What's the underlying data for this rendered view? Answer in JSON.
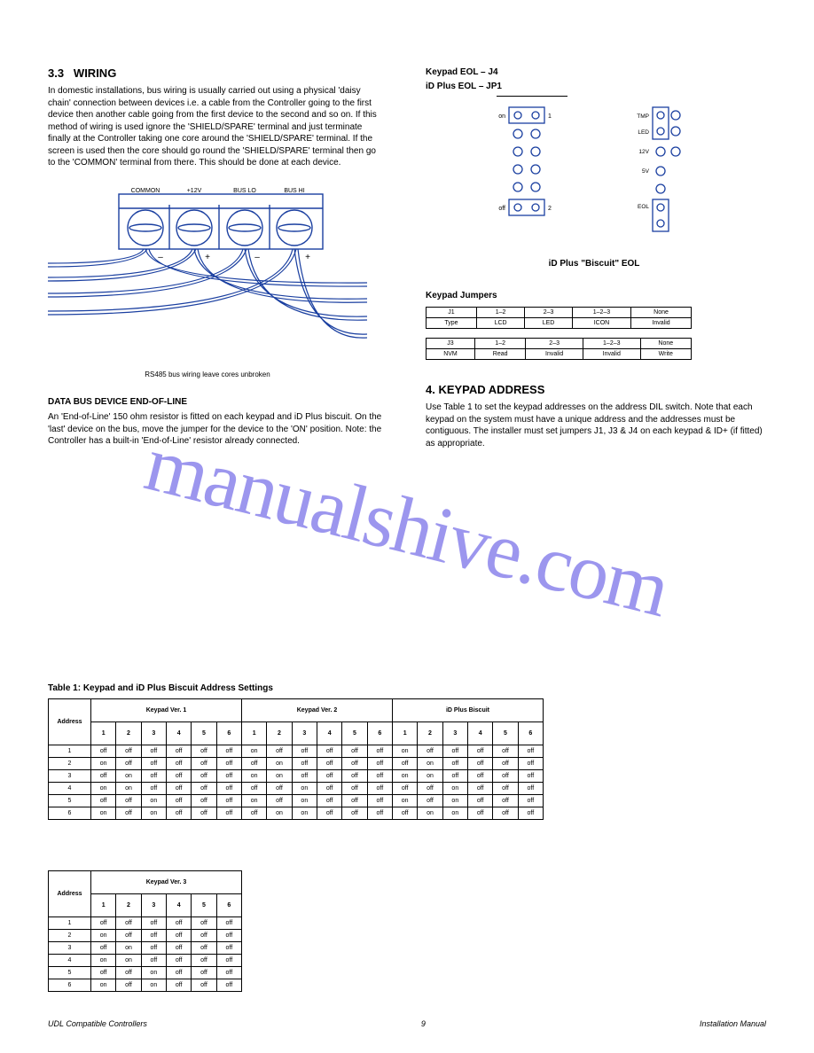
{
  "watermark": "manualshive.com",
  "left": {
    "section_no": "3.3",
    "section_title": "WIRING",
    "para": "In domestic installations, bus wiring is usually carried out using a physical 'daisy chain' connection between devices i.e. a cable from the Controller going to the first device then another cable going from the first device to the second and so on. If this method of wiring is used ignore the 'SHIELD/SPARE' terminal and just terminate finally at the Controller taking one core around the 'SHIELD/SPARE' terminal. If the screen is used then the core should go round the 'SHIELD/SPARE' terminal then go to the 'COMMON' terminal from there. This should be done at each device.",
    "img_caption": "RS485 bus wiring leave cores unbroken",
    "term_labels": [
      "COMMON",
      "+12V",
      "BUS LO",
      "BUS HI"
    ],
    "end_line": "DATA BUS DEVICE END-OF-LINE",
    "end_para": "An 'End-of-Line' 150 ohm resistor is fitted on each keypad and iD Plus biscuit. On the 'last' device on the bus, move the jumper for the device to the 'ON' position. Note: the Controller has a built-in 'End-of-Line' resistor already connected."
  },
  "right": {
    "head1": "Keypad EOL – J4",
    "head2": "iD Plus EOL – JP1",
    "k_row1": [
      "on",
      "off"
    ],
    "k_row2": [
      "1",
      "2"
    ],
    "b_rows": [
      "TMP",
      "LED",
      "12V",
      "5V",
      "EOL"
    ],
    "idhead": "iD Plus \"Biscuit\" EOL",
    "jump_title": "Keypad Jumpers",
    "j1": {
      "h": [
        "J1",
        "1–2",
        "2–3",
        "1–2–3",
        "None"
      ],
      "r": [
        "Type",
        "LCD",
        "LED",
        "ICON",
        "Invalid"
      ]
    },
    "j3": {
      "h": [
        "J3",
        "1–2",
        "2–3",
        "1–2–3",
        "None"
      ],
      "r": [
        "NVM",
        "Read",
        "Invalid",
        "Invalid",
        "Write"
      ]
    },
    "section4": "4. KEYPAD ADDRESS",
    "p4": "Use Table 1 to set the keypad addresses on the address DIL switch. Note that each keypad on the system must have a unique address and the addresses must be contiguous. The installer must set jumpers J1, J3 & J4 on each keypad & ID+ (if fitted) as appropriate."
  },
  "tables": {
    "t1_caption": "Table 1: Keypad and iD Plus Biscuit Address Settings",
    "headers_top": [
      "Keypad Ver. 1",
      "Keypad Ver. 2",
      "iD Plus Biscuit"
    ],
    "row_head": "Address",
    "addr_cols": [
      "1",
      "2",
      "3",
      "4",
      "5",
      "6"
    ],
    "rows": [
      "1",
      "2",
      "3",
      "4",
      "5",
      "6"
    ],
    "vals": {
      "r1": [
        "off",
        "off",
        "off",
        "off",
        "off",
        "off",
        "on",
        "off",
        "off",
        "off",
        "off",
        "off",
        "on",
        "off",
        "off",
        "off",
        "off",
        "off"
      ],
      "r2": [
        "on",
        "off",
        "off",
        "off",
        "off",
        "off",
        "off",
        "on",
        "off",
        "off",
        "off",
        "off",
        "off",
        "on",
        "off",
        "off",
        "off",
        "off"
      ],
      "r3": [
        "off",
        "on",
        "off",
        "off",
        "off",
        "off",
        "on",
        "on",
        "off",
        "off",
        "off",
        "off",
        "on",
        "on",
        "off",
        "off",
        "off",
        "off"
      ],
      "r4": [
        "on",
        "on",
        "off",
        "off",
        "off",
        "off",
        "off",
        "off",
        "on",
        "off",
        "off",
        "off",
        "off",
        "off",
        "on",
        "off",
        "off",
        "off"
      ],
      "r5": [
        "off",
        "off",
        "on",
        "off",
        "off",
        "off",
        "on",
        "off",
        "on",
        "off",
        "off",
        "off",
        "on",
        "off",
        "on",
        "off",
        "off",
        "off"
      ],
      "r6": [
        "on",
        "off",
        "on",
        "off",
        "off",
        "off",
        "off",
        "on",
        "on",
        "off",
        "off",
        "off",
        "off",
        "on",
        "on",
        "off",
        "off",
        "off"
      ]
    },
    "t2_head": "Keypad Ver. 3",
    "t2_rows": {
      "r1": [
        "1",
        "off",
        "off",
        "off",
        "off",
        "off",
        "off"
      ],
      "r2": [
        "2",
        "on",
        "off",
        "off",
        "off",
        "off",
        "off"
      ],
      "r3": [
        "3",
        "off",
        "on",
        "off",
        "off",
        "off",
        "off"
      ],
      "r4": [
        "4",
        "on",
        "on",
        "off",
        "off",
        "off",
        "off"
      ],
      "r5": [
        "5",
        "off",
        "off",
        "on",
        "off",
        "off",
        "off"
      ],
      "r6": [
        "6",
        "on",
        "off",
        "on",
        "off",
        "off",
        "off"
      ]
    }
  },
  "footer": {
    "left": "UDL Compatible Controllers",
    "right": "Installation Manual"
  },
  "pageno": "9",
  "colors": {
    "stroke": "#1a3fa0",
    "wm": "#6a5fe8"
  }
}
